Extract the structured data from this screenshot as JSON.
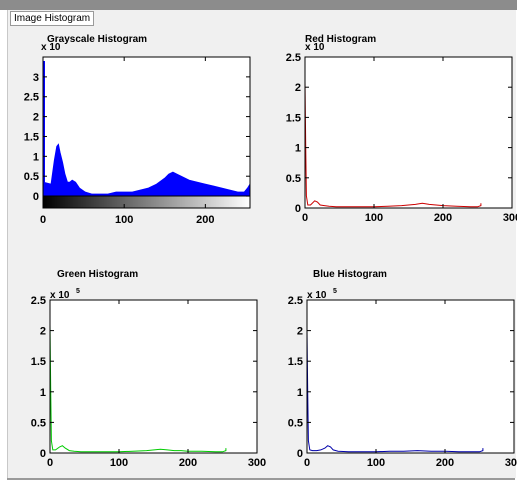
{
  "window": {
    "panel_title": "Image Histogram"
  },
  "chart_data": [
    {
      "type": "area",
      "title": "Grayscale Histogram",
      "y_exponent_label": "x 10",
      "y_exponent_power": "",
      "xlim": [
        0,
        255
      ],
      "ylim": [
        -0.3,
        3.5
      ],
      "x_ticks": [
        0,
        100,
        200
      ],
      "y_ticks": [
        0,
        0.5,
        1,
        1.5,
        2,
        2.5,
        3
      ],
      "y_tick_labels": [
        "0",
        "0.5",
        "1",
        "1.5",
        "2",
        "2.5",
        "3"
      ],
      "color": "#0000ff",
      "gradient_bar": true,
      "x": [
        0,
        10,
        14,
        17,
        19,
        21,
        24,
        27,
        30,
        33,
        36,
        40,
        45,
        52,
        60,
        70,
        80,
        90,
        100,
        110,
        120,
        130,
        140,
        150,
        155,
        160,
        165,
        170,
        180,
        190,
        200,
        210,
        220,
        230,
        240,
        248,
        252,
        255
      ],
      "y": [
        0.35,
        0.3,
        0.9,
        1.25,
        1.3,
        1.1,
        0.85,
        0.55,
        0.35,
        0.35,
        0.4,
        0.35,
        0.2,
        0.1,
        0.05,
        0.05,
        0.05,
        0.1,
        0.1,
        0.1,
        0.15,
        0.2,
        0.3,
        0.45,
        0.55,
        0.6,
        0.55,
        0.5,
        0.4,
        0.35,
        0.3,
        0.25,
        0.2,
        0.15,
        0.1,
        0.1,
        0.2,
        0.3
      ]
    },
    {
      "type": "line",
      "title": "Red Histogram",
      "y_exponent_label": "x 10",
      "y_exponent_power": "",
      "xlim": [
        0,
        300
      ],
      "ylim": [
        0,
        2.5
      ],
      "x_ticks": [
        0,
        100,
        200,
        300
      ],
      "y_ticks": [
        0,
        0.5,
        1,
        1.5,
        2,
        2.5
      ],
      "y_tick_labels": [
        "0",
        "0.5",
        "1",
        "1.5",
        "2",
        "2.5"
      ],
      "color": "#cc0000",
      "x": [
        0,
        1,
        2,
        4,
        8,
        14,
        18,
        22,
        28,
        35,
        45,
        60,
        80,
        100,
        120,
        140,
        160,
        170,
        180,
        190,
        200,
        220,
        240,
        250,
        255,
        255
      ],
      "y": [
        2.1,
        1.05,
        0.2,
        0.05,
        0.05,
        0.12,
        0.1,
        0.05,
        0.04,
        0.03,
        0.02,
        0.02,
        0.02,
        0.02,
        0.03,
        0.04,
        0.06,
        0.08,
        0.06,
        0.05,
        0.04,
        0.03,
        0.02,
        0.02,
        0.04,
        0.08
      ]
    },
    {
      "type": "line",
      "title": "Green Histogram",
      "y_exponent_label": "x 10",
      "y_exponent_power": "5",
      "xlim": [
        0,
        300
      ],
      "ylim": [
        0,
        2.5
      ],
      "x_ticks": [
        0,
        100,
        200,
        300
      ],
      "y_ticks": [
        0,
        0.5,
        1,
        1.5,
        2,
        2.5
      ],
      "y_tick_labels": [
        "0",
        "0.5",
        "1",
        "1.5",
        "2",
        "2.5"
      ],
      "color": "#00cc00",
      "x": [
        0,
        1,
        2,
        4,
        8,
        14,
        18,
        22,
        28,
        35,
        45,
        60,
        80,
        100,
        120,
        140,
        160,
        170,
        180,
        190,
        200,
        220,
        240,
        250,
        255,
        255
      ],
      "y": [
        2.1,
        1.05,
        0.2,
        0.05,
        0.05,
        0.1,
        0.12,
        0.08,
        0.04,
        0.03,
        0.02,
        0.02,
        0.02,
        0.02,
        0.03,
        0.04,
        0.06,
        0.05,
        0.04,
        0.04,
        0.03,
        0.03,
        0.02,
        0.02,
        0.04,
        0.08
      ]
    },
    {
      "type": "line",
      "title": "Blue Histogram",
      "y_exponent_label": "x 10",
      "y_exponent_power": "5",
      "xlim": [
        0,
        300
      ],
      "ylim": [
        0,
        2.5
      ],
      "x_ticks": [
        0,
        100,
        200,
        300
      ],
      "y_ticks": [
        0,
        0.5,
        1,
        1.5,
        2,
        2.5
      ],
      "y_tick_labels": [
        "0",
        "0.5",
        "1",
        "1.5",
        "2",
        "2.5"
      ],
      "color": "#0000aa",
      "x": [
        0,
        1,
        2,
        4,
        8,
        14,
        20,
        26,
        30,
        34,
        38,
        45,
        60,
        80,
        100,
        120,
        140,
        160,
        180,
        200,
        220,
        240,
        250,
        255,
        255
      ],
      "y": [
        2.0,
        1.0,
        0.2,
        0.05,
        0.04,
        0.04,
        0.05,
        0.08,
        0.12,
        0.1,
        0.05,
        0.03,
        0.02,
        0.02,
        0.02,
        0.03,
        0.03,
        0.04,
        0.03,
        0.03,
        0.02,
        0.02,
        0.02,
        0.04,
        0.08
      ]
    }
  ]
}
